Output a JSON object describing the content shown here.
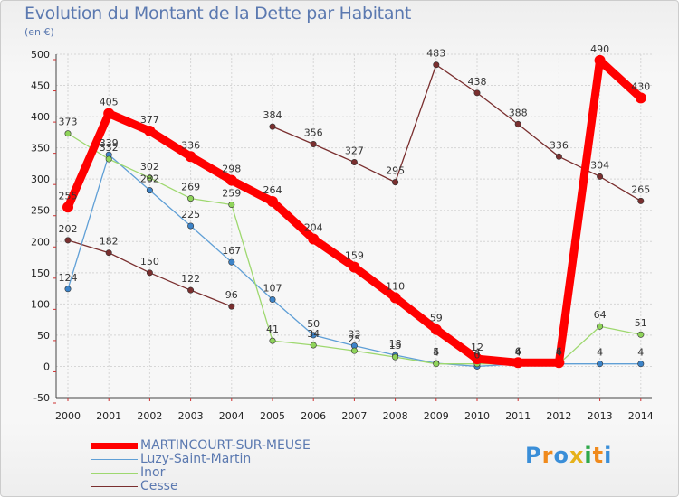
{
  "chart_data": {
    "type": "line",
    "title": "Evolution du Montant de la Dette par Habitant",
    "ylabel": "(en €)",
    "xlabel": "",
    "ylim": [
      -50,
      500
    ],
    "yticks": [
      -50,
      0,
      50,
      100,
      150,
      200,
      250,
      300,
      350,
      400,
      450,
      500
    ],
    "categories": [
      "2000",
      "2001",
      "2002",
      "2003",
      "2004",
      "2005",
      "2006",
      "2007",
      "2008",
      "2009",
      "2010",
      "2011",
      "2012",
      "2013",
      "2014"
    ],
    "series": [
      {
        "name": "MARTINCOURT-SUR-MEUSE",
        "color": "#ff0000",
        "marker": "#ff0000",
        "bold": true,
        "values": [
          255,
          405,
          377,
          336,
          298,
          264,
          204,
          159,
          110,
          59,
          12,
          6,
          6,
          490,
          430
        ],
        "labels": [
          "255",
          "405",
          "377",
          "336",
          "298",
          "264",
          "204",
          "159",
          "110",
          "59",
          "12",
          "6",
          "6",
          "490",
          "430"
        ]
      },
      {
        "name": "Luzy-Saint-Martin",
        "color": "#5f9fd6",
        "marker": "#3d84c9",
        "bold": false,
        "values": [
          124,
          339,
          282,
          225,
          167,
          107,
          50,
          33,
          18,
          5,
          0,
          4,
          4,
          4,
          4
        ],
        "labels": [
          "124",
          "339",
          "282",
          "225",
          "167",
          "107",
          "50",
          "33",
          "18",
          "5",
          "0",
          "4",
          "4",
          "4",
          "4"
        ]
      },
      {
        "name": "Inor",
        "color": "#9ed86f",
        "marker": "#8fd45a",
        "bold": false,
        "values": [
          373,
          332,
          302,
          269,
          259,
          41,
          34,
          25,
          15,
          4,
          4,
          4,
          4,
          64,
          51
        ],
        "labels": [
          "373",
          "332",
          "302",
          "269",
          "259",
          "41",
          "34",
          "25",
          "15",
          "4",
          "4",
          "4",
          "4",
          "64",
          "51"
        ]
      },
      {
        "name": "Cesse",
        "color": "#7a2f2f",
        "marker": "#7a2f2f",
        "bold": false,
        "values": [
          202,
          182,
          150,
          122,
          96,
          384,
          356,
          327,
          295,
          483,
          438,
          388,
          336,
          304,
          265
        ],
        "labels": [
          "202",
          "182",
          "150",
          "122",
          "96",
          "384",
          "356",
          "327",
          "295",
          "483",
          "438",
          "388",
          "336",
          "304",
          "265"
        ],
        "breaks": [
          4
        ]
      }
    ]
  },
  "legend": {
    "items": [
      {
        "label": "MARTINCOURT-SUR-MEUSE",
        "color": "#ff0000"
      },
      {
        "label": "Luzy-Saint-Martin",
        "color": "#5f9fd6"
      },
      {
        "label": "Inor",
        "color": "#9ed86f"
      },
      {
        "label": "Cesse",
        "color": "#7a2f2f"
      }
    ]
  },
  "brand": {
    "letters": [
      "P",
      "r",
      "o",
      "x",
      "i",
      "t",
      "i"
    ],
    "colors": [
      "#3a8ed8",
      "#f08a1c",
      "#3a8ed8",
      "#e6b21a",
      "#2fa84a",
      "#f08a1c",
      "#3a8ed8"
    ]
  }
}
